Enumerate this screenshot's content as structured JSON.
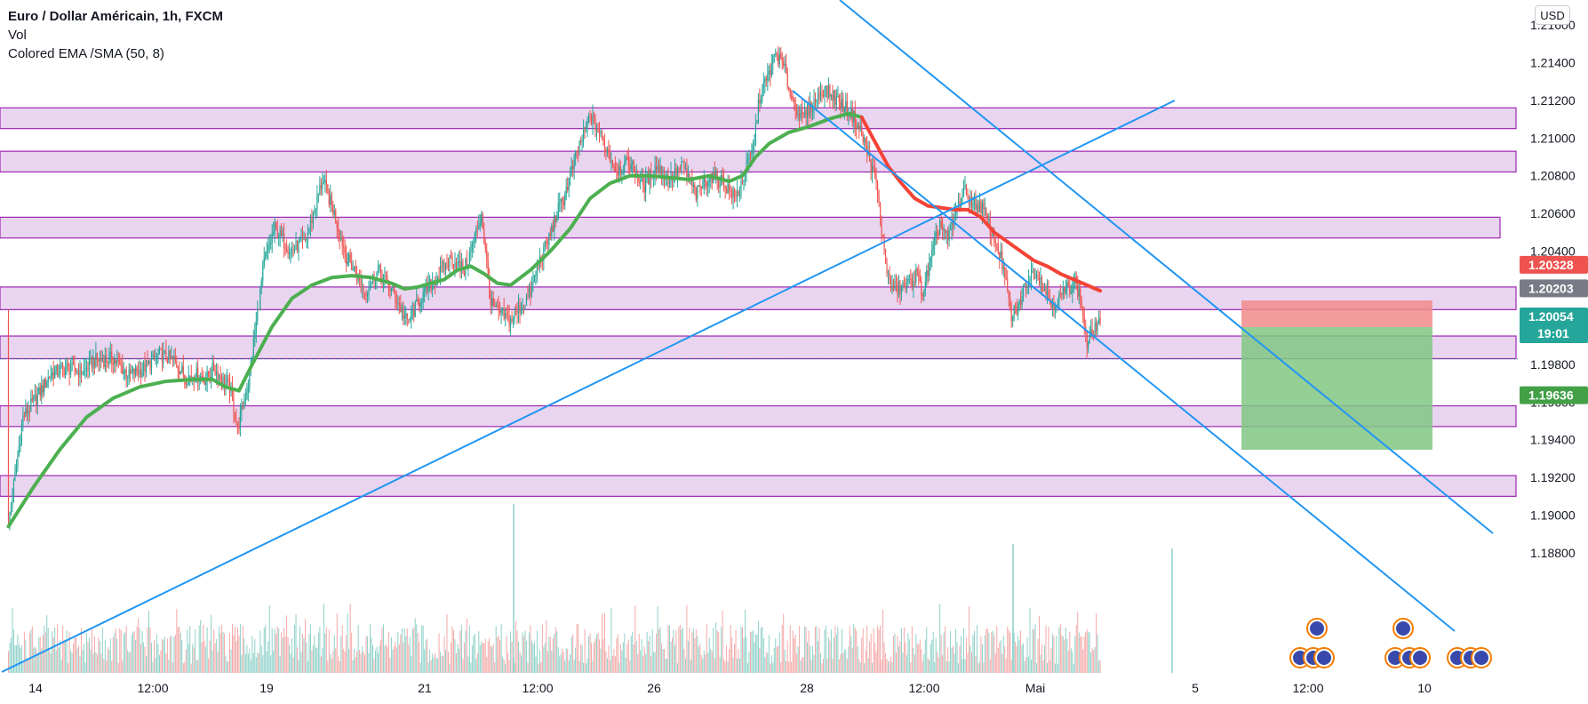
{
  "legend": {
    "symbol": "Euro / Dollar Américain, 1h, FXCM",
    "indicator_1": "Vol",
    "indicator_2": "Colored EMA /SMA (50, 8)"
  },
  "currency": "USD",
  "colors": {
    "zone_fill": "#e9d5f0",
    "zone_border": "#9c27b0",
    "trendline": "#2196f3",
    "ema_up": "#4caf50",
    "ema_down": "#f44336",
    "candle_up": "#26a69a",
    "candle_down": "#ef5350",
    "target_zone": "#81c784",
    "stop_zone": "#f28b8b"
  },
  "chart_data": {
    "type": "candlestick",
    "symbol": "EURUSD",
    "timeframe": "1h",
    "y_axis": {
      "ticks": [
        "1.21600",
        "1.21400",
        "1.21200",
        "1.21000",
        "1.20800",
        "1.20600",
        "1.20400",
        "1.20200",
        "1.20000",
        "1.19800",
        "1.19600",
        "1.19400",
        "1.19200",
        "1.19000",
        "1.18800"
      ],
      "ylim": [
        1.1865,
        1.2165
      ]
    },
    "x_axis": {
      "ticks": [
        "14",
        "12:00",
        "19",
        "21",
        "12:00",
        "26",
        "28",
        "12:00",
        "Mai",
        "5",
        "12:00",
        "10"
      ]
    },
    "price_labels": [
      {
        "name": "stop",
        "value": "1.20328",
        "time": ""
      },
      {
        "name": "entry",
        "value": "1.20203",
        "time": ""
      },
      {
        "name": "last",
        "value": "1.20054",
        "time": "19:01"
      },
      {
        "name": "target",
        "value": "1.19636",
        "time": ""
      }
    ],
    "zones": [
      {
        "from": 1.2105,
        "to": 1.2116
      },
      {
        "from": 1.2082,
        "to": 1.2093
      },
      {
        "from": 1.2047,
        "to": 1.2058
      },
      {
        "from": 1.2009,
        "to": 1.2021
      },
      {
        "from": 1.1983,
        "to": 1.1995
      },
      {
        "from": 1.1947,
        "to": 1.1958
      },
      {
        "from": 1.191,
        "to": 1.1921
      }
    ],
    "position": {
      "entry": 1.20203,
      "stop": 1.20328,
      "target": 1.19636
    },
    "candle_anchors": [
      [
        1,
        1.1895
      ],
      [
        12,
        1.1952
      ],
      [
        22,
        1.1962
      ],
      [
        33,
        1.1975
      ],
      [
        45,
        1.1978
      ],
      [
        57,
        1.1976
      ],
      [
        66,
        1.1982
      ],
      [
        80,
        1.1983
      ],
      [
        92,
        1.1974
      ],
      [
        104,
        1.1978
      ],
      [
        115,
        1.1985
      ],
      [
        126,
        1.1982
      ],
      [
        135,
        1.1973
      ],
      [
        142,
        1.1975
      ],
      [
        150,
        1.1972
      ],
      [
        156,
        1.1978
      ],
      [
        160,
        1.1974
      ],
      [
        168,
        1.1968
      ],
      [
        174,
        1.1946
      ],
      [
        182,
        1.197
      ],
      [
        194,
        1.2034
      ],
      [
        202,
        1.2052
      ],
      [
        214,
        1.204
      ],
      [
        225,
        1.2045
      ],
      [
        232,
        1.2062
      ],
      [
        238,
        1.2078
      ],
      [
        247,
        1.206
      ],
      [
        256,
        1.2037
      ],
      [
        262,
        1.203
      ],
      [
        270,
        1.2018
      ],
      [
        280,
        1.203
      ],
      [
        293,
        1.2016
      ],
      [
        302,
        1.2002
      ],
      [
        312,
        1.2015
      ],
      [
        325,
        1.2027
      ],
      [
        335,
        1.2036
      ],
      [
        345,
        1.203
      ],
      [
        350,
        1.204
      ],
      [
        358,
        1.206
      ],
      [
        365,
        1.2012
      ],
      [
        370,
        1.2008
      ],
      [
        380,
        1.2003
      ],
      [
        395,
        1.2018
      ],
      [
        402,
        1.2035
      ],
      [
        408,
        1.2045
      ],
      [
        415,
        1.206
      ],
      [
        420,
        1.2068
      ],
      [
        430,
        1.2092
      ],
      [
        440,
        1.2112
      ],
      [
        450,
        1.2098
      ],
      [
        460,
        1.2083
      ],
      [
        470,
        1.2087
      ],
      [
        480,
        1.2074
      ],
      [
        490,
        1.2085
      ],
      [
        500,
        1.2078
      ],
      [
        510,
        1.2085
      ],
      [
        520,
        1.207
      ],
      [
        530,
        1.208
      ],
      [
        540,
        1.2077
      ],
      [
        550,
        1.2068
      ],
      [
        556,
        1.208
      ],
      [
        563,
        1.2094
      ],
      [
        568,
        1.2122
      ],
      [
        574,
        1.2132
      ],
      [
        580,
        1.2145
      ],
      [
        586,
        1.2138
      ],
      [
        592,
        1.2122
      ],
      [
        600,
        1.211
      ],
      [
        608,
        1.2118
      ],
      [
        616,
        1.2126
      ],
      [
        624,
        1.2122
      ],
      [
        630,
        1.2118
      ],
      [
        638,
        1.2112
      ],
      [
        645,
        1.2102
      ],
      [
        651,
        1.2088
      ],
      [
        656,
        1.2076
      ],
      [
        661,
        1.2045
      ],
      [
        666,
        1.2022
      ],
      [
        672,
        1.202
      ],
      [
        680,
        1.2022
      ],
      [
        686,
        1.2028
      ],
      [
        691,
        1.2018
      ],
      [
        696,
        1.2032
      ],
      [
        704,
        1.2055
      ],
      [
        710,
        1.2046
      ],
      [
        716,
        1.206
      ],
      [
        722,
        1.2072
      ],
      [
        728,
        1.2066
      ],
      [
        736,
        1.2063
      ],
      [
        742,
        1.2052
      ],
      [
        748,
        1.2042
      ],
      [
        752,
        1.203
      ],
      [
        758,
        1.2005
      ],
      [
        764,
        1.2012
      ],
      [
        770,
        1.2025
      ],
      [
        776,
        1.203
      ],
      [
        782,
        1.2022
      ],
      [
        788,
        1.2012
      ],
      [
        794,
        1.2015
      ],
      [
        800,
        1.202
      ],
      [
        806,
        1.2024
      ],
      [
        811,
        1.2012
      ],
      [
        815,
        1.199
      ],
      [
        820,
        1.1998
      ],
      [
        825,
        1.2004
      ]
    ],
    "ema_anchors": [
      [
        1,
        1.1894
      ],
      [
        20,
        1.1915
      ],
      [
        40,
        1.1935
      ],
      [
        60,
        1.1952
      ],
      [
        80,
        1.1962
      ],
      [
        100,
        1.1968
      ],
      [
        120,
        1.1971
      ],
      [
        140,
        1.1972
      ],
      [
        155,
        1.1972
      ],
      [
        165,
        1.1968
      ],
      [
        175,
        1.1966
      ],
      [
        185,
        1.198
      ],
      [
        200,
        1.2
      ],
      [
        215,
        1.2015
      ],
      [
        230,
        1.2022
      ],
      [
        245,
        1.2026
      ],
      [
        260,
        1.2027
      ],
      [
        275,
        1.2026
      ],
      [
        290,
        1.2023
      ],
      [
        300,
        1.202
      ],
      [
        310,
        1.2021
      ],
      [
        320,
        1.2023
      ],
      [
        330,
        1.2025
      ],
      [
        340,
        1.203
      ],
      [
        350,
        1.2032
      ],
      [
        360,
        1.2028
      ],
      [
        370,
        1.2023
      ],
      [
        380,
        1.2022
      ],
      [
        395,
        1.203
      ],
      [
        410,
        1.204
      ],
      [
        425,
        1.2052
      ],
      [
        440,
        1.2068
      ],
      [
        455,
        1.2076
      ],
      [
        470,
        1.208
      ],
      [
        485,
        1.208
      ],
      [
        500,
        1.2079
      ],
      [
        515,
        1.2078
      ],
      [
        530,
        1.208
      ],
      [
        545,
        1.2077
      ],
      [
        555,
        1.208
      ],
      [
        565,
        1.209
      ],
      [
        575,
        1.2097
      ],
      [
        590,
        1.2103
      ],
      [
        605,
        1.2106
      ],
      [
        620,
        1.211
      ],
      [
        635,
        1.2113
      ],
      [
        645,
        1.2111
      ],
      [
        655,
        1.2098
      ],
      [
        665,
        1.2085
      ],
      [
        675,
        1.2076
      ],
      [
        685,
        1.2068
      ],
      [
        695,
        1.2064
      ],
      [
        705,
        1.2063
      ],
      [
        715,
        1.2062
      ],
      [
        725,
        1.2062
      ],
      [
        735,
        1.2058
      ],
      [
        745,
        1.205
      ],
      [
        755,
        1.2045
      ],
      [
        765,
        1.204
      ],
      [
        775,
        1.2035
      ],
      [
        785,
        1.2032
      ],
      [
        795,
        1.2028
      ],
      [
        805,
        1.2025
      ],
      [
        815,
        1.2022
      ],
      [
        825,
        1.2019
      ]
    ]
  }
}
